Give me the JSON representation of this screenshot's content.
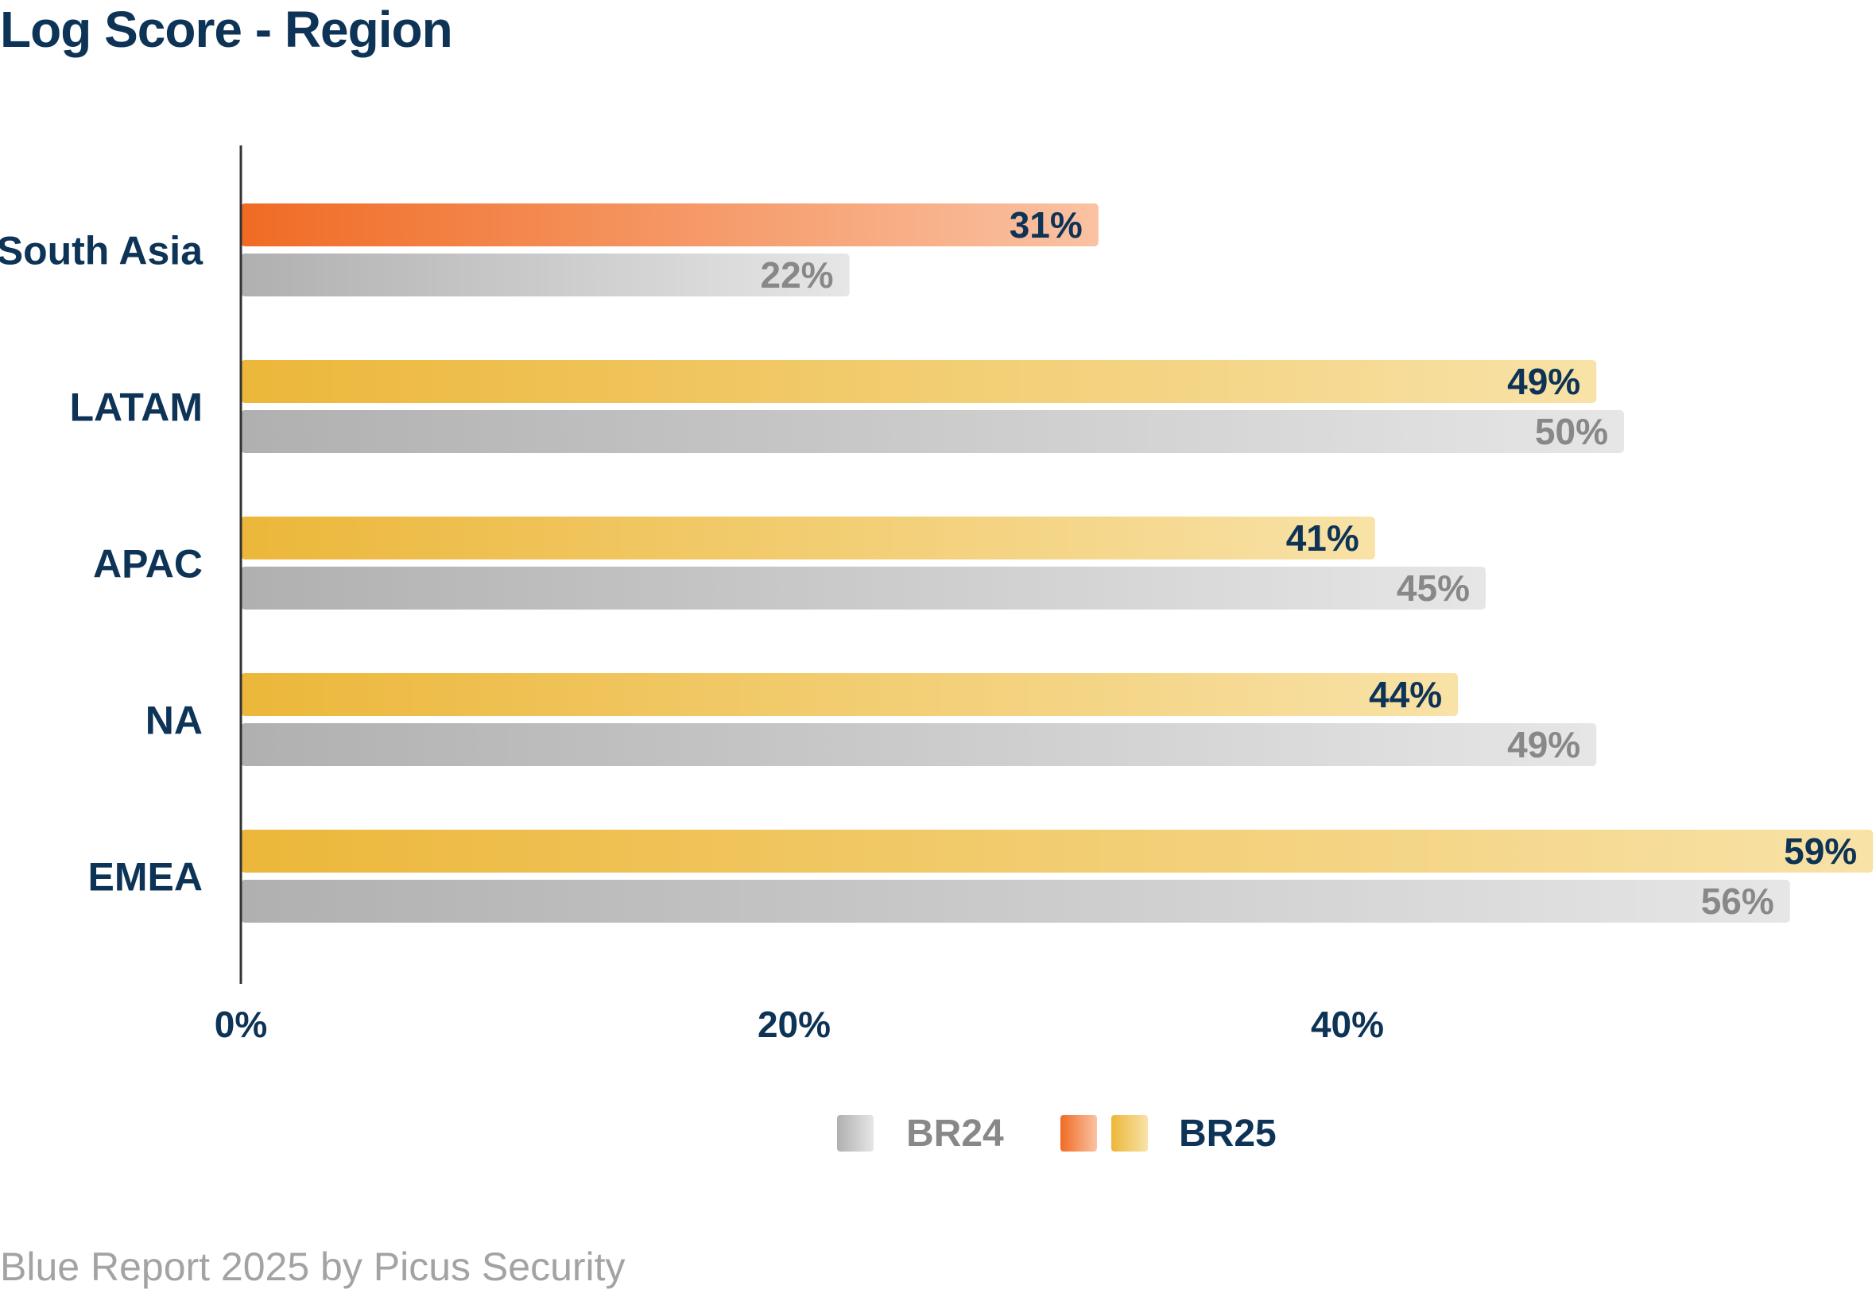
{
  "chart_data": {
    "type": "bar",
    "orientation": "horizontal",
    "title": "Log Score - Region",
    "categories": [
      "South Asia",
      "LATAM",
      "APAC",
      "NA",
      "EMEA"
    ],
    "series": [
      {
        "name": "BR25",
        "values": [
          31,
          49,
          41,
          44,
          59
        ],
        "value_labels": [
          "31%",
          "49%",
          "41%",
          "44%",
          "59%"
        ],
        "colors": [
          [
            "#f06b24",
            "#fac2a3"
          ],
          [
            "#ecb73a",
            "#f8e2a7"
          ],
          [
            "#ecb73a",
            "#f8e2a7"
          ],
          [
            "#ecb73a",
            "#f8e2a7"
          ],
          [
            "#ecb73a",
            "#f8e2a7"
          ]
        ],
        "label_color": "#0d3356"
      },
      {
        "name": "BR24",
        "values": [
          22,
          50,
          45,
          49,
          56
        ],
        "value_labels": [
          "22%",
          "50%",
          "45%",
          "49%",
          "56%"
        ],
        "colors": [
          [
            "#b0b0b0",
            "#e6e6e6"
          ],
          [
            "#b0b0b0",
            "#e6e6e6"
          ],
          [
            "#b0b0b0",
            "#e6e6e6"
          ],
          [
            "#b0b0b0",
            "#e6e6e6"
          ],
          [
            "#b0b0b0",
            "#e6e6e6"
          ]
        ],
        "label_color": "#888888"
      }
    ],
    "xaxis": {
      "ticks": [
        0,
        20,
        40
      ],
      "tick_labels": [
        "0%",
        "20%",
        "40%"
      ],
      "range": [
        0,
        59
      ]
    },
    "legend": {
      "position": "bottom-center",
      "items": [
        {
          "label": "BR24",
          "label_color": "#888888",
          "swatches": [
            [
              "#b0b0b0",
              "#e6e6e6"
            ]
          ]
        },
        {
          "label": "BR25",
          "label_color": "#0d3356",
          "swatches": [
            [
              "#f06b24",
              "#fac2a3"
            ],
            [
              "#ecb73a",
              "#f8e2a7"
            ]
          ]
        }
      ]
    },
    "colors": {
      "category_label": "#0d3356",
      "tick_label": "#0d3356",
      "axis_line": "#333333"
    }
  },
  "footer": {
    "text": "Blue Report 2025 by Picus Security"
  }
}
